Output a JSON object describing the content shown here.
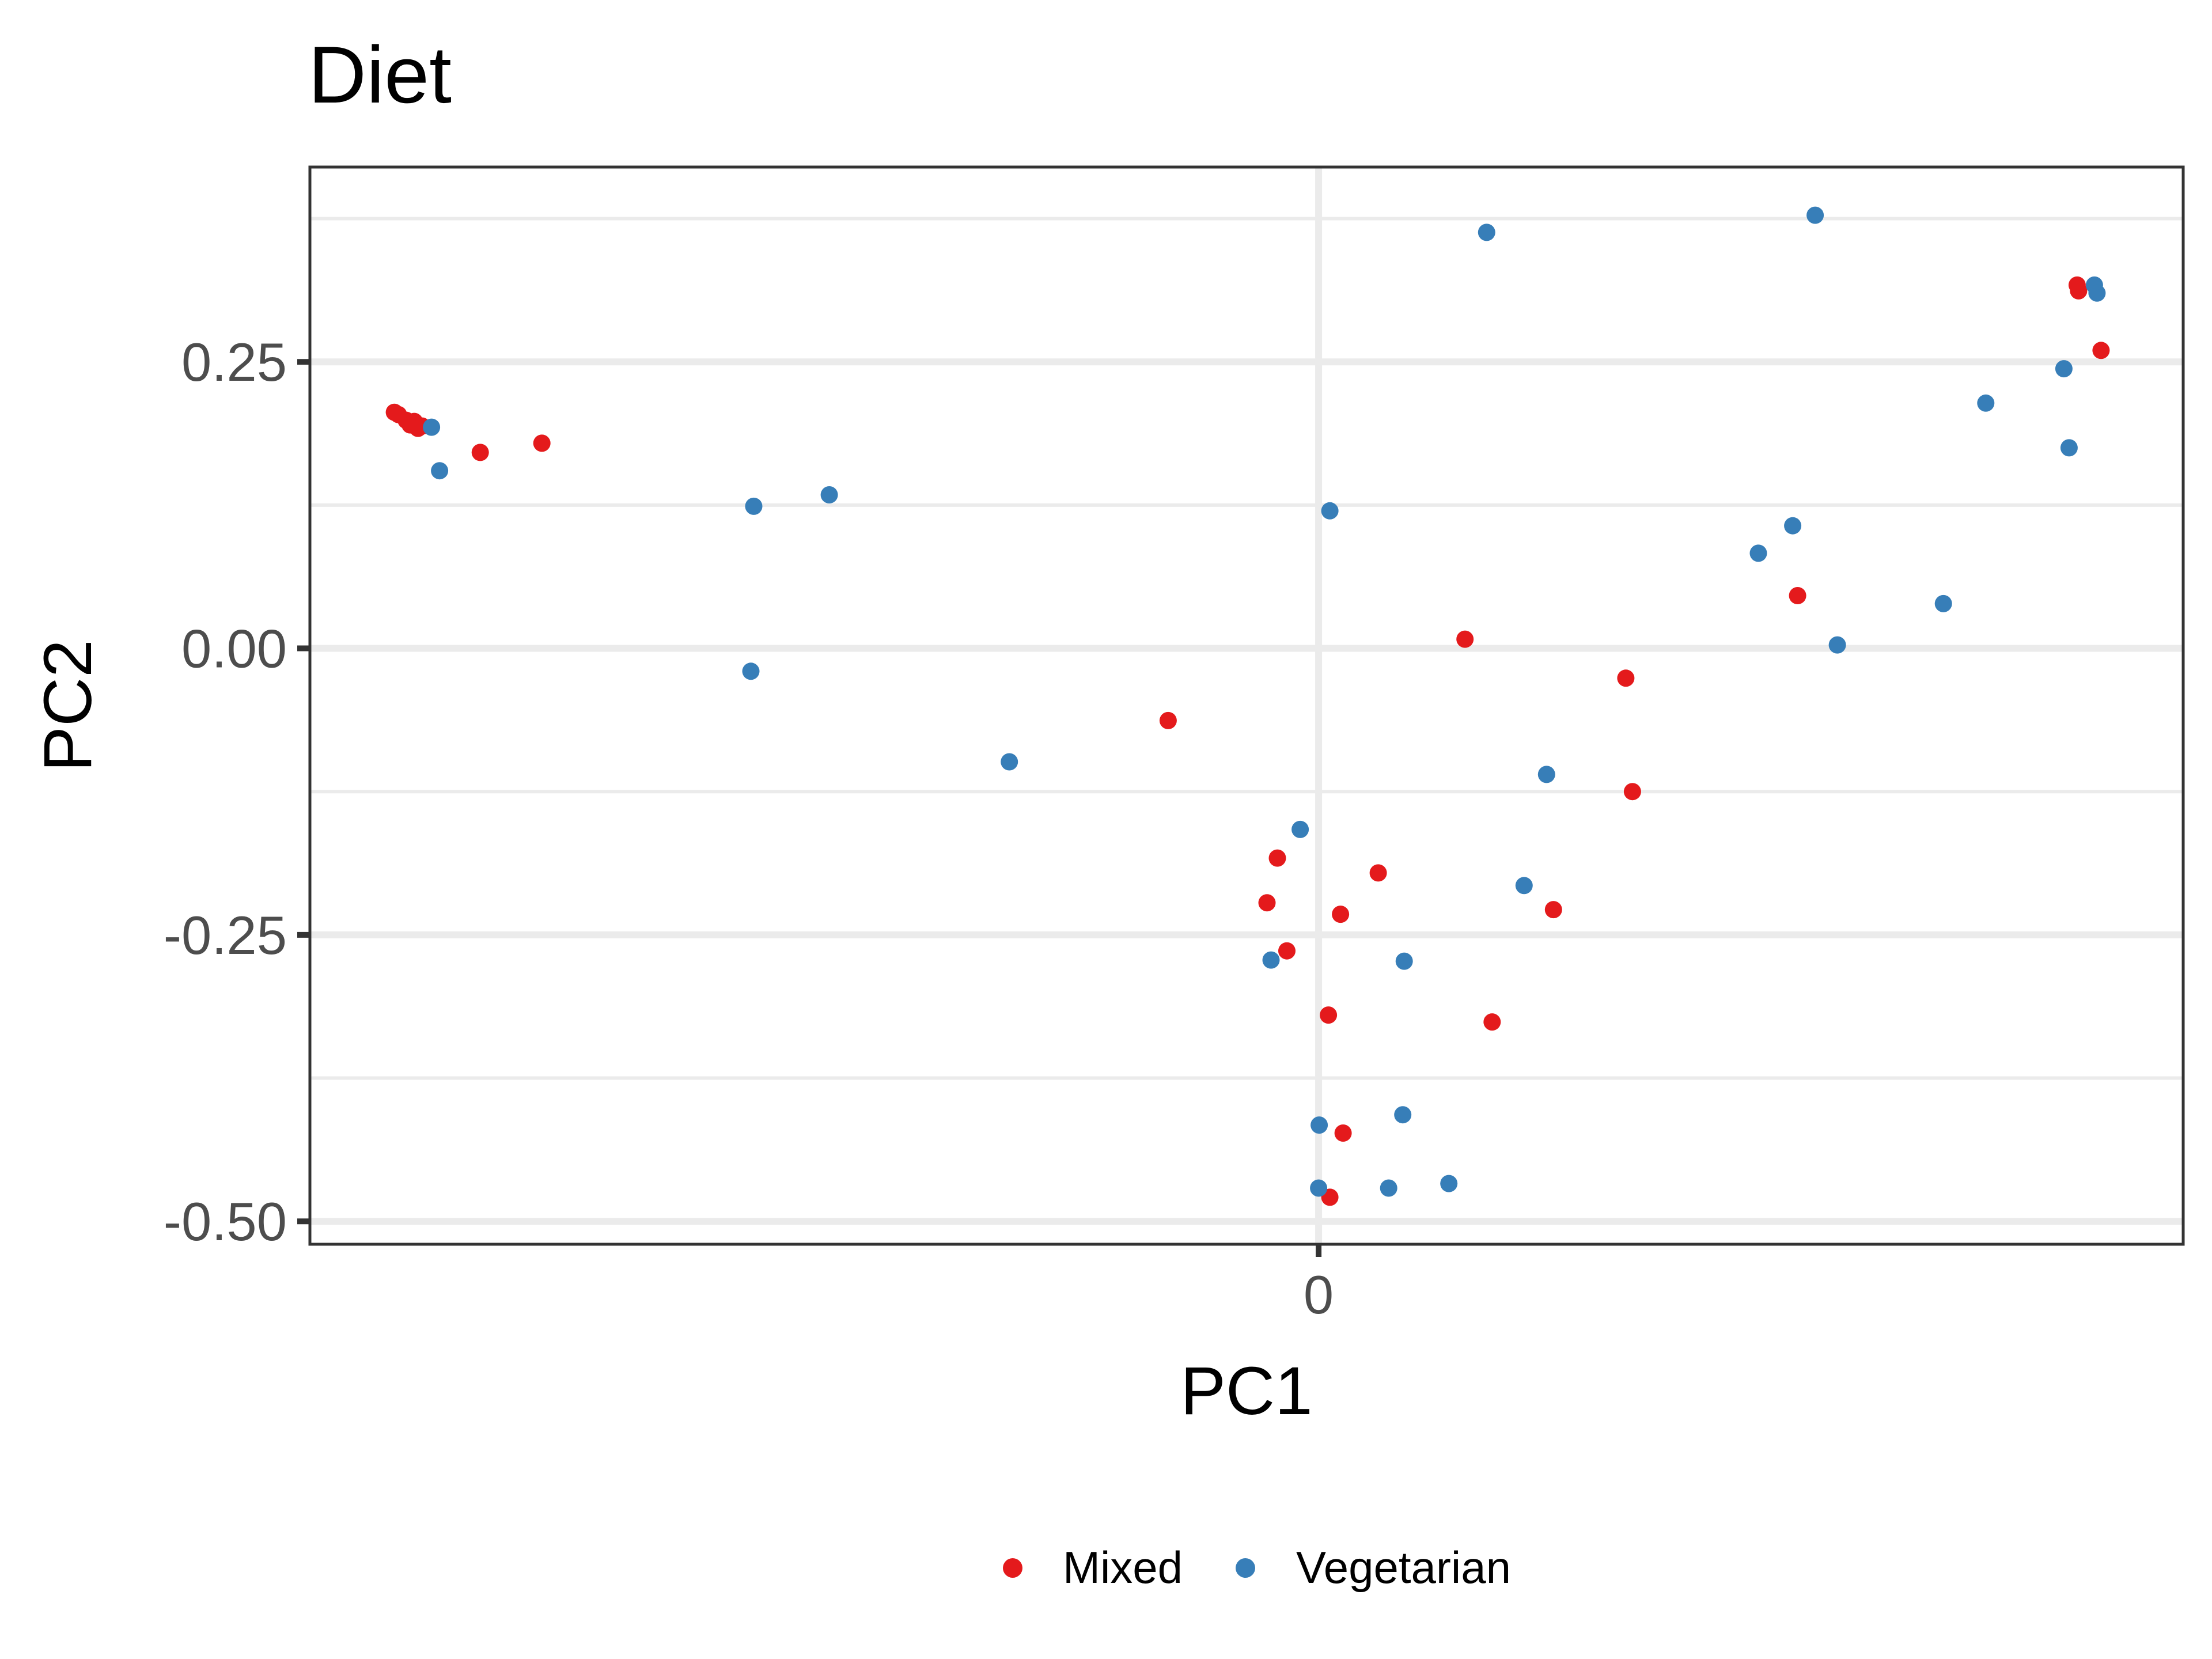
{
  "chart_data": {
    "type": "scatter",
    "title": "Diet",
    "xlabel": "PC1",
    "ylabel": "PC2",
    "xlim": [
      -0.35,
      0.3
    ],
    "ylim": [
      -0.52,
      0.42
    ],
    "x_ticks": [
      0
    ],
    "x_tick_labels": [
      "0"
    ],
    "y_ticks": [
      0.25,
      0.0,
      -0.25,
      -0.5
    ],
    "y_tick_labels": [
      "0.25",
      "0.00",
      "-0.25",
      "-0.50"
    ],
    "y_minor_ticks": [
      0.375,
      0.125,
      -0.125,
      -0.375
    ],
    "grid": true,
    "legend_position": "bottom",
    "series": [
      {
        "name": "Mixed",
        "color": "#e41a1c",
        "points": [
          [
            -0.3207,
            0.206
          ],
          [
            -0.3193,
            0.204
          ],
          [
            -0.3166,
            0.199
          ],
          [
            -0.3152,
            0.195
          ],
          [
            -0.3138,
            0.198
          ],
          [
            -0.3125,
            0.192
          ],
          [
            -0.3111,
            0.194
          ],
          [
            -0.2909,
            0.171
          ],
          [
            -0.2695,
            0.179
          ],
          [
            -0.0522,
            -0.063
          ],
          [
            0.0508,
            0.008
          ],
          [
            0.1066,
            -0.026
          ],
          [
            0.1089,
            -0.125
          ],
          [
            -0.0143,
            -0.183
          ],
          [
            -0.0179,
            -0.222
          ],
          [
            0.0207,
            -0.196
          ],
          [
            0.0076,
            -0.232
          ],
          [
            -0.011,
            -0.264
          ],
          [
            0.0815,
            -0.228
          ],
          [
            0.0034,
            -0.32
          ],
          [
            0.0602,
            -0.326
          ],
          [
            0.0085,
            -0.423
          ],
          [
            0.0039,
            -0.479
          ],
          [
            0.1662,
            0.046
          ],
          [
            0.2632,
            0.317
          ],
          [
            0.2637,
            0.312
          ],
          [
            0.2715,
            0.26
          ]
        ]
      },
      {
        "name": "Vegetarian",
        "color": "#377eb8",
        "points": [
          [
            -0.3078,
            0.193
          ],
          [
            -0.305,
            0.155
          ],
          [
            -0.196,
            0.124
          ],
          [
            -0.1698,
            0.134
          ],
          [
            -0.197,
            -0.02
          ],
          [
            -0.1073,
            -0.099
          ],
          [
            0.0039,
            0.12
          ],
          [
            0.0583,
            0.363
          ],
          [
            0.1723,
            0.378
          ],
          [
            -0.0064,
            -0.158
          ],
          [
            -0.0165,
            -0.272
          ],
          [
            0.0297,
            -0.273
          ],
          [
            0.0791,
            -0.11
          ],
          [
            0.0713,
            -0.207
          ],
          [
            0.0002,
            -0.416
          ],
          [
            0.0292,
            -0.407
          ],
          [
            0.0,
            -0.471
          ],
          [
            0.0243,
            -0.471
          ],
          [
            0.0452,
            -0.467
          ],
          [
            0.1526,
            0.083
          ],
          [
            0.1645,
            0.107
          ],
          [
            0.18,
            0.003
          ],
          [
            0.2168,
            0.039
          ],
          [
            0.2315,
            0.214
          ],
          [
            0.2586,
            0.244
          ],
          [
            0.2604,
            0.175
          ],
          [
            0.2692,
            0.317
          ],
          [
            0.2701,
            0.31
          ]
        ]
      }
    ]
  }
}
